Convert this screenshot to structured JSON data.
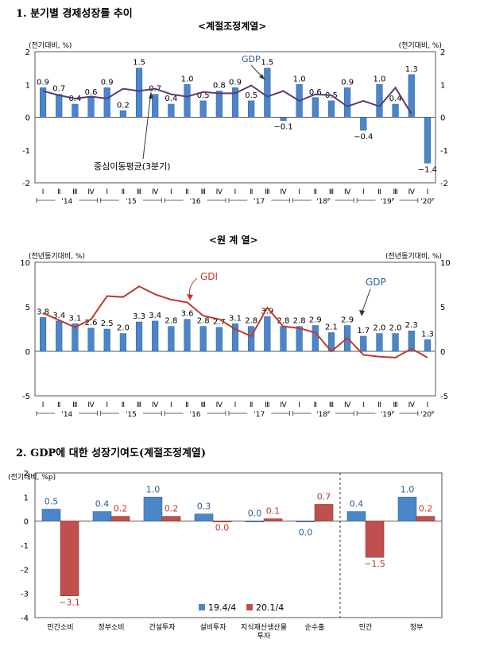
{
  "sections": {
    "s1_title": "1. 분기별 경제성장률 추이",
    "s1_sub": "<계절조정계열>",
    "s1b_sub": "<원 계 열>",
    "s2_title": "2. GDP에 대한 성장기여도(계절조정계열)"
  },
  "chart_data": [
    {
      "type": "bar",
      "unit_label_left": "(전기대비, %)",
      "unit_label_right": "(전기대비, %)",
      "ylim": [
        -2,
        2
      ],
      "yticks": [
        -2,
        -1,
        0,
        1,
        2
      ],
      "quarter_labels": [
        "Ⅰ",
        "Ⅱ",
        "Ⅲ",
        "Ⅳ",
        "Ⅰ",
        "Ⅱ",
        "Ⅲ",
        "Ⅳ",
        "Ⅰ",
        "Ⅱ",
        "Ⅲ",
        "Ⅳ",
        "Ⅰ",
        "Ⅱ",
        "Ⅲ",
        "Ⅳ",
        "Ⅰ",
        "Ⅱ",
        "Ⅲ",
        "Ⅳ",
        "Ⅰ",
        "Ⅱ",
        "Ⅲ",
        "Ⅳ",
        "Ⅰ"
      ],
      "year_labels": [
        "'14",
        "'15",
        "'16",
        "'17",
        "'18ᴾ",
        "'19ᴾ",
        "'20ᴾ"
      ],
      "series": [
        {
          "name": "GDP",
          "kind": "bar",
          "color": "#4a86c8",
          "values": [
            0.9,
            0.7,
            0.4,
            0.6,
            0.9,
            0.2,
            1.5,
            0.7,
            0.4,
            1.0,
            0.5,
            0.8,
            0.9,
            0.5,
            1.5,
            -0.1,
            1.0,
            0.6,
            0.5,
            0.9,
            -0.4,
            1.0,
            0.4,
            1.3,
            -1.4
          ]
        },
        {
          "name": "중심이동평균(3분기)",
          "kind": "line",
          "color": "#5b3a7a",
          "values": [
            0.8,
            0.67,
            0.57,
            0.63,
            0.57,
            0.87,
            0.8,
            0.87,
            0.7,
            0.63,
            0.77,
            0.73,
            0.73,
            0.97,
            0.63,
            0.8,
            0.5,
            0.7,
            0.67,
            0.33,
            0.5,
            0.33,
            0.9,
            0.1,
            null
          ]
        }
      ],
      "annotations": {
        "gdp": "GDP",
        "avg": "중심이동평균(3분기)"
      }
    },
    {
      "type": "bar",
      "unit_label_left": "(전년동기대비, %)",
      "unit_label_right": "(전년동기대비, %)",
      "ylim": [
        -5,
        10
      ],
      "yticks": [
        -5,
        0,
        5,
        10
      ],
      "quarter_labels": [
        "Ⅰ",
        "Ⅱ",
        "Ⅲ",
        "Ⅳ",
        "Ⅰ",
        "Ⅱ",
        "Ⅲ",
        "Ⅳ",
        "Ⅰ",
        "Ⅱ",
        "Ⅲ",
        "Ⅳ",
        "Ⅰ",
        "Ⅱ",
        "Ⅲ",
        "Ⅳ",
        "Ⅰ",
        "Ⅱ",
        "Ⅲ",
        "Ⅳ",
        "Ⅰ",
        "Ⅱ",
        "Ⅲ",
        "Ⅳ",
        "Ⅰ"
      ],
      "year_labels": [
        "'14",
        "'15",
        "'16",
        "'17",
        "'18ᴾ",
        "'19ᴾ",
        "'20ᴾ"
      ],
      "series": [
        {
          "name": "GDP",
          "kind": "bar",
          "color": "#4a86c8",
          "values": [
            3.8,
            3.4,
            3.1,
            2.6,
            2.5,
            2.0,
            3.3,
            3.4,
            2.8,
            3.6,
            2.8,
            2.7,
            3.1,
            2.8,
            3.9,
            2.8,
            2.8,
            2.9,
            2.1,
            2.9,
            1.7,
            2.0,
            2.0,
            2.3,
            1.3
          ]
        },
        {
          "name": "GDI",
          "kind": "line",
          "color": "#c0392b",
          "values": [
            4.3,
            3.5,
            2.7,
            3.6,
            6.2,
            6.1,
            7.3,
            6.4,
            5.8,
            5.5,
            4.0,
            3.6,
            2.5,
            1.7,
            4.9,
            2.8,
            2.6,
            2.1,
            0.0,
            1.5,
            -0.4,
            -0.6,
            -0.7,
            0.3,
            -0.7
          ]
        }
      ],
      "annotations": {
        "gdp": "GDP",
        "gdi": "GDI"
      }
    },
    {
      "type": "bar",
      "unit_label_left": "(전기대비, %p)",
      "ylim": [
        -4,
        2
      ],
      "yticks": [
        -4,
        -3,
        -2,
        -1,
        0,
        1,
        2
      ],
      "categories": [
        "민간소비",
        "정부소비",
        "건설투자",
        "설비투자",
        "지식재산생산물 투자",
        "순수출",
        "민간",
        "정부"
      ],
      "series": [
        {
          "name": "19.4/4",
          "color": "#4a86c8",
          "values": [
            0.5,
            0.4,
            1.0,
            0.3,
            0.0,
            0.0,
            0.4,
            1.0
          ]
        },
        {
          "name": "20.1/4",
          "color": "#c0504d",
          "values": [
            -3.1,
            0.2,
            0.2,
            0.0,
            0.1,
            0.7,
            -1.5,
            0.2
          ]
        }
      ],
      "value_labels_s1": [
        "0.5",
        "0.4",
        "1.0",
        "0.3",
        "0.0",
        "0.0",
        "0.4",
        "1.0"
      ],
      "value_labels_s2": [
        "−3.1",
        "0.2",
        "0.2",
        "0.0",
        "0.1",
        "0.7",
        "−1.5",
        "0.2"
      ],
      "legend": [
        "19.4/4",
        "20.1/4"
      ]
    }
  ]
}
